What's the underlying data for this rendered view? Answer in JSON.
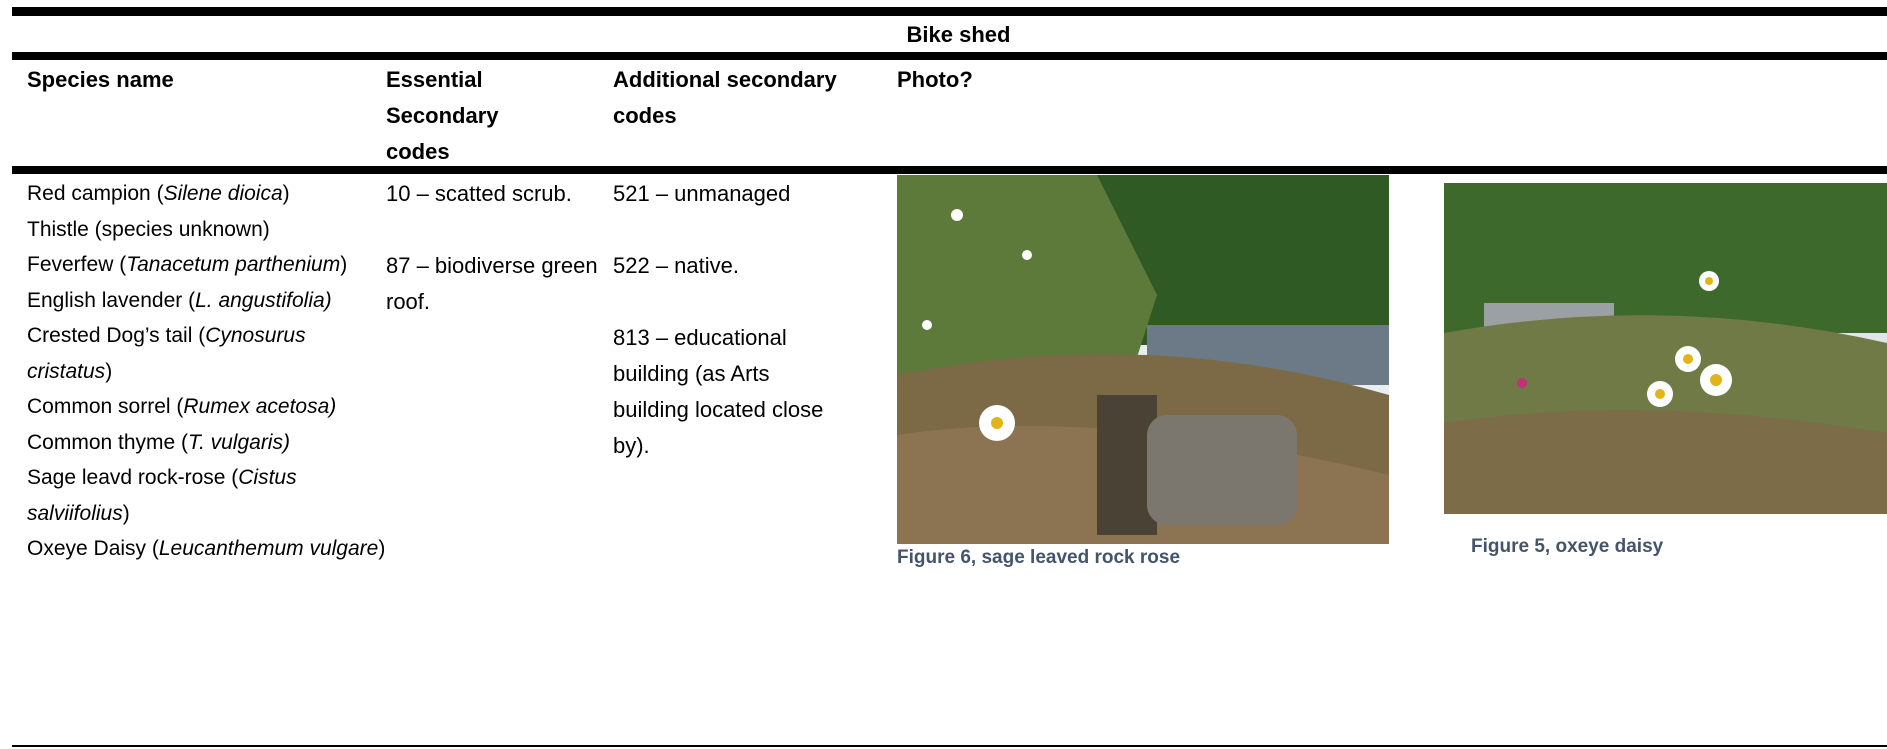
{
  "title": "Bike shed",
  "table": {
    "headers": [
      "Species name",
      "Essential Secondary codes",
      "Additional secondary codes",
      "Photo?"
    ],
    "rows": [
      {
        "species": [
          [
            "Red campion (",
            "Silene dioica",
            ")"
          ],
          [
            "Thistle (species unknown)"
          ],
          [
            "Feverfew (",
            "Tanacetum parthenium",
            ")"
          ],
          [
            "English lavender (",
            "L. angustifolia)"
          ],
          [
            "Crested Dog’s tail (",
            "Cynosurus cristatus",
            ")"
          ],
          [
            "Common sorrel (",
            "Rumex acetosa)"
          ],
          [
            "Common thyme (",
            "T. vulgaris)"
          ],
          [
            "Sage leavd rock-rose (",
            "Cistus salviifolius",
            ")"
          ],
          [
            "Oxeye Daisy (",
            "Leucanthemum vulgare",
            ")"
          ]
        ],
        "essential": [
          "10 – scatted scrub.",
          "87 – biodiverse green roof."
        ],
        "additional": [
          "521 – unmanaged",
          "522 – native.",
          "813 – educational building (as Arts building located close by)."
        ],
        "photos": [
          {
            "caption": "Figure 6, sage leaved rock rose"
          },
          {
            "caption": "Figure 5, oxeye daisy"
          }
        ]
      }
    ]
  }
}
